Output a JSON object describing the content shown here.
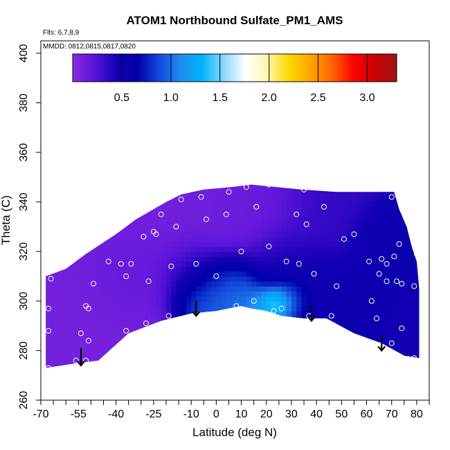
{
  "chart_data": {
    "type": "heatmap",
    "title": "ATOM1 Northbound Sulfate_PM1_AMS",
    "notes": {
      "flights": "Flts: 6,7,8,9",
      "dates": "MMDD: 0812,0815,0817,0820"
    },
    "xlabel": "Latitude (deg N)",
    "ylabel": "Theta (C)",
    "xlim": [
      -70,
      85
    ],
    "ylim": [
      260,
      405
    ],
    "x_ticks": [
      -70,
      -55,
      -40,
      -25,
      -10,
      0,
      10,
      20,
      30,
      40,
      50,
      60,
      70,
      80
    ],
    "x_minor_ticks": [
      -65,
      -60,
      -50,
      -45,
      -35,
      -30,
      -20,
      -15,
      -5,
      5,
      15,
      25,
      35,
      45,
      55,
      65,
      75,
      85
    ],
    "y_ticks": [
      260,
      280,
      300,
      320,
      340,
      360,
      380,
      400
    ],
    "colorbar": {
      "range": [
        0,
        3.3
      ],
      "ticks": [
        0.5,
        1.0,
        1.5,
        2.0,
        2.5,
        3.0
      ],
      "tick_labels": [
        "0.5",
        "1.0",
        "1.5",
        "2.0",
        "2.5",
        "3.0"
      ],
      "colors": [
        "#8a2be2",
        "#5a14d8",
        "#1400b4",
        "#0000a8",
        "#1448dc",
        "#1e8cf0",
        "#00b4ff",
        "#8cd8ff",
        "#ffffff",
        "#fff5b4",
        "#ffd700",
        "#ffa500",
        "#ff6400",
        "#ff0000",
        "#c80000",
        "#a01414"
      ]
    },
    "domain_outline": [
      [
        -68,
        273
      ],
      [
        -68,
        310
      ],
      [
        -60,
        313
      ],
      [
        -52,
        319
      ],
      [
        -40,
        327
      ],
      [
        -32,
        333
      ],
      [
        -20,
        340
      ],
      [
        -14,
        343
      ],
      [
        -5,
        345
      ],
      [
        6,
        346
      ],
      [
        14,
        347
      ],
      [
        24,
        346
      ],
      [
        34,
        345
      ],
      [
        48,
        344
      ],
      [
        60,
        344
      ],
      [
        71,
        344
      ],
      [
        73,
        337
      ],
      [
        76,
        330
      ],
      [
        78,
        322
      ],
      [
        80,
        316
      ],
      [
        81,
        305
      ],
      [
        81,
        277
      ],
      [
        75,
        278
      ],
      [
        66,
        283
      ],
      [
        55,
        287
      ],
      [
        44,
        293
      ],
      [
        35,
        293
      ],
      [
        26,
        294
      ],
      [
        20,
        296
      ],
      [
        14,
        297
      ],
      [
        10,
        298
      ],
      [
        0,
        296
      ],
      [
        -10,
        295
      ],
      [
        -22,
        292
      ],
      [
        -35,
        287
      ],
      [
        -47,
        276
      ],
      [
        -55,
        275
      ],
      [
        -68,
        273
      ]
    ],
    "field_centers": [
      {
        "lat": -55,
        "theta": 300,
        "value": 0.1,
        "sigma": 18
      },
      {
        "lat": -20,
        "theta": 330,
        "value": 0.1,
        "sigma": 18
      },
      {
        "lat": 10,
        "theta": 340,
        "value": 0.15,
        "sigma": 15
      },
      {
        "lat": 45,
        "theta": 338,
        "value": 0.35,
        "sigma": 12
      },
      {
        "lat": 68,
        "theta": 325,
        "value": 0.55,
        "sigma": 8
      },
      {
        "lat": 72,
        "theta": 290,
        "value": 0.45,
        "sigma": 8
      },
      {
        "lat": 60,
        "theta": 295,
        "value": 0.55,
        "sigma": 8
      },
      {
        "lat": 40,
        "theta": 305,
        "value": 0.5,
        "sigma": 9
      },
      {
        "lat": 25,
        "theta": 315,
        "value": 0.45,
        "sigma": 8
      },
      {
        "lat": -10,
        "theta": 312,
        "value": 0.45,
        "sigma": 8
      },
      {
        "lat": -35,
        "theta": 312,
        "value": 0.2,
        "sigma": 10
      },
      {
        "lat": -5,
        "theta": 302,
        "value": 1.1,
        "sigma": 7
      },
      {
        "lat": 5,
        "theta": 307,
        "value": 1.0,
        "sigma": 7
      },
      {
        "lat": 20,
        "theta": 298,
        "value": 1.45,
        "sigma": 4
      },
      {
        "lat": 24,
        "theta": 300,
        "value": 1.75,
        "sigma": 3
      },
      {
        "lat": 28,
        "theta": 302,
        "value": 1.2,
        "sigma": 5
      },
      {
        "lat": 12,
        "theta": 300,
        "value": 1.1,
        "sigma": 6
      }
    ],
    "sample_points": [
      [
        -67,
        273
      ],
      [
        -67,
        288
      ],
      [
        -67,
        297
      ],
      [
        -66,
        309
      ],
      [
        -58,
        273
      ],
      [
        -56,
        276
      ],
      [
        -54,
        287
      ],
      [
        -52,
        276
      ],
      [
        -52,
        298
      ],
      [
        -51,
        284
      ],
      [
        -51,
        297
      ],
      [
        -49,
        307
      ],
      [
        -43,
        316
      ],
      [
        -38,
        315
      ],
      [
        -36,
        288
      ],
      [
        -36,
        310
      ],
      [
        -34,
        315
      ],
      [
        -29,
        326
      ],
      [
        -28,
        291
      ],
      [
        -27,
        308
      ],
      [
        -25,
        328
      ],
      [
        -24,
        327
      ],
      [
        -22,
        335
      ],
      [
        -19,
        294
      ],
      [
        -18,
        314
      ],
      [
        -16,
        330
      ],
      [
        -14,
        341
      ],
      [
        -8,
        315
      ],
      [
        -6,
        342
      ],
      [
        -4,
        333
      ],
      [
        0,
        310
      ],
      [
        4,
        335
      ],
      [
        5,
        344
      ],
      [
        8,
        298
      ],
      [
        10,
        320
      ],
      [
        12,
        346
      ],
      [
        15,
        300
      ],
      [
        16,
        338
      ],
      [
        21,
        322
      ],
      [
        21,
        347
      ],
      [
        23,
        296
      ],
      [
        26,
        297
      ],
      [
        28,
        316
      ],
      [
        29,
        347
      ],
      [
        32,
        335
      ],
      [
        33,
        315
      ],
      [
        35,
        345
      ],
      [
        36,
        331
      ],
      [
        37,
        294
      ],
      [
        39,
        311
      ],
      [
        43,
        338
      ],
      [
        46,
        294
      ],
      [
        48,
        306
      ],
      [
        51,
        325
      ],
      [
        55,
        327
      ],
      [
        61,
        316
      ],
      [
        62,
        300
      ],
      [
        64,
        293
      ],
      [
        65,
        311
      ],
      [
        66,
        317
      ],
      [
        68,
        308
      ],
      [
        68,
        315
      ],
      [
        70,
        283
      ],
      [
        70,
        342
      ],
      [
        71,
        278
      ],
      [
        71,
        318
      ],
      [
        72,
        308
      ],
      [
        73,
        323
      ],
      [
        74,
        307
      ],
      [
        74,
        289
      ],
      [
        79,
        277
      ],
      [
        79,
        306
      ],
      [
        80,
        319
      ]
    ],
    "arrows": [
      {
        "lat": -54,
        "theta_from": 281,
        "theta_to": 274
      },
      {
        "lat": -8,
        "theta_from": 300,
        "theta_to": 294
      },
      {
        "lat": 38,
        "theta_from": 298,
        "theta_to": 292
      },
      {
        "lat": 66,
        "theta_from": 286,
        "theta_to": 280
      }
    ]
  }
}
